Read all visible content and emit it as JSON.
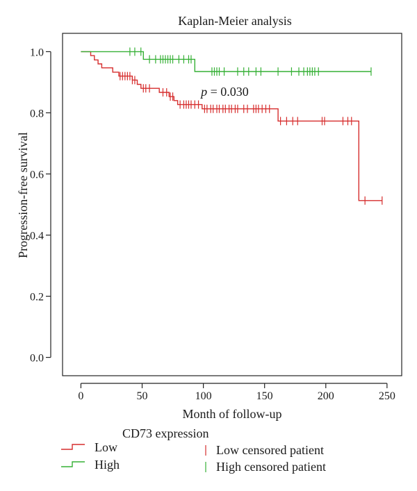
{
  "chart_data": {
    "type": "line",
    "subtype": "kaplan-meier",
    "title": "Kaplan-Meier analysis",
    "xlabel": "Month of follow-up",
    "ylabel": "Progression-free survival",
    "xlim": [
      -15,
      262
    ],
    "ylim": [
      -0.06,
      1.06
    ],
    "x_ticks": [
      0,
      50,
      100,
      150,
      200,
      250
    ],
    "y_ticks": [
      0.0,
      0.2,
      0.4,
      0.6,
      0.8,
      1.0
    ],
    "x_tick_labels": [
      "0",
      "50",
      "100",
      "150",
      "200",
      "250"
    ],
    "y_tick_labels": [
      "0.0",
      "0.2",
      "0.4",
      "0.6",
      "0.8",
      "1.0"
    ],
    "grid": false,
    "annotation": {
      "p_symbol": "p",
      "text": " = 0.030",
      "x": 98,
      "y": 0.855
    },
    "series": [
      {
        "name": "Low",
        "color": "#d62d2d",
        "steps": [
          [
            0,
            1.0
          ],
          [
            8,
            0.987
          ],
          [
            11,
            0.973
          ],
          [
            14,
            0.96
          ],
          [
            17,
            0.947
          ],
          [
            26,
            0.933
          ],
          [
            31,
            0.92
          ],
          [
            42,
            0.907
          ],
          [
            46,
            0.893
          ],
          [
            49,
            0.88
          ],
          [
            64,
            0.867
          ],
          [
            72,
            0.853
          ],
          [
            76,
            0.84
          ],
          [
            79,
            0.827
          ],
          [
            99,
            0.813
          ],
          [
            161,
            0.773
          ],
          [
            227,
            0.513
          ],
          [
            246,
            0.513
          ]
        ],
        "censored": [
          32,
          34,
          36,
          38,
          40,
          42,
          44,
          51,
          53,
          56,
          67,
          70,
          73,
          75,
          81,
          84,
          86,
          88,
          90,
          93,
          96,
          101,
          103,
          106,
          108,
          111,
          113,
          116,
          118,
          121,
          123,
          126,
          128,
          133,
          136,
          141,
          143,
          145,
          148,
          151,
          154,
          163,
          168,
          173,
          177,
          197,
          199,
          214,
          218,
          221,
          232,
          246
        ]
      },
      {
        "name": "High",
        "color": "#35b035",
        "steps": [
          [
            0,
            1.0
          ],
          [
            51,
            0.975
          ],
          [
            93,
            0.935
          ],
          [
            237,
            0.935
          ]
        ],
        "censored": [
          40,
          44,
          49,
          56,
          61,
          65,
          67,
          69,
          71,
          73,
          75,
          80,
          84,
          88,
          90,
          107,
          109,
          111,
          113,
          117,
          128,
          133,
          137,
          143,
          147,
          161,
          172,
          178,
          182,
          185,
          187,
          189,
          191,
          194,
          237
        ]
      }
    ],
    "legend": {
      "title": "CD73 expression",
      "items": [
        {
          "label": "Low",
          "color": "#d62d2d",
          "kind": "step"
        },
        {
          "label": "High",
          "color": "#35b035",
          "kind": "step"
        },
        {
          "label": "Low censored patient",
          "color": "#d62d2d",
          "kind": "tick"
        },
        {
          "label": "High censored patient",
          "color": "#35b035",
          "kind": "tick"
        }
      ]
    }
  }
}
